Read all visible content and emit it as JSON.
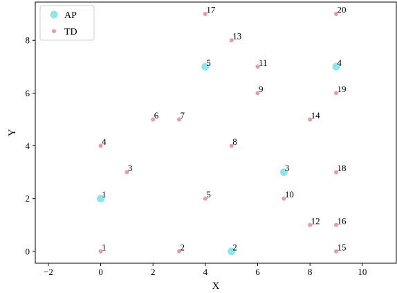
{
  "chart_data": {
    "type": "scatter",
    "title": "",
    "xlabel": "X",
    "ylabel": "Y",
    "xlim": [
      -2.5,
      11.3
    ],
    "ylim": [
      -0.45,
      9.45
    ],
    "xticks": [
      -2,
      0,
      2,
      4,
      6,
      8,
      10
    ],
    "yticks": [
      0,
      2,
      4,
      6,
      8
    ],
    "grid": false,
    "legend_position": "top-left",
    "series": [
      {
        "name": "AP",
        "color": "#8ee6e8",
        "marker_size": "large",
        "points": [
          {
            "x": 0,
            "y": 2,
            "label": "1"
          },
          {
            "x": 5,
            "y": 0,
            "label": "2"
          },
          {
            "x": 7,
            "y": 3,
            "label": "3"
          },
          {
            "x": 9,
            "y": 7,
            "label": "4"
          },
          {
            "x": 4,
            "y": 7,
            "label": "5"
          }
        ]
      },
      {
        "name": "TD",
        "color": "#e89aaa",
        "marker_size": "small",
        "points": [
          {
            "x": 0,
            "y": 0,
            "label": "1"
          },
          {
            "x": 3,
            "y": 0,
            "label": "2"
          },
          {
            "x": 1,
            "y": 3,
            "label": "3"
          },
          {
            "x": 0,
            "y": 4,
            "label": "4"
          },
          {
            "x": 4,
            "y": 2,
            "label": "5"
          },
          {
            "x": 2,
            "y": 5,
            "label": "6"
          },
          {
            "x": 3,
            "y": 5,
            "label": "7"
          },
          {
            "x": 5,
            "y": 4,
            "label": "8"
          },
          {
            "x": 6,
            "y": 6,
            "label": "9"
          },
          {
            "x": 7,
            "y": 2,
            "label": "10"
          },
          {
            "x": 6,
            "y": 7,
            "label": "11"
          },
          {
            "x": 8,
            "y": 1,
            "label": "12"
          },
          {
            "x": 5,
            "y": 8,
            "label": "13"
          },
          {
            "x": 8,
            "y": 5,
            "label": "14"
          },
          {
            "x": 9,
            "y": 0,
            "label": "15"
          },
          {
            "x": 9,
            "y": 1,
            "label": "16"
          },
          {
            "x": 4,
            "y": 9,
            "label": "17"
          },
          {
            "x": 9,
            "y": 3,
            "label": "18"
          },
          {
            "x": 9,
            "y": 6,
            "label": "19"
          },
          {
            "x": 9,
            "y": 9,
            "label": "20"
          }
        ]
      }
    ]
  }
}
